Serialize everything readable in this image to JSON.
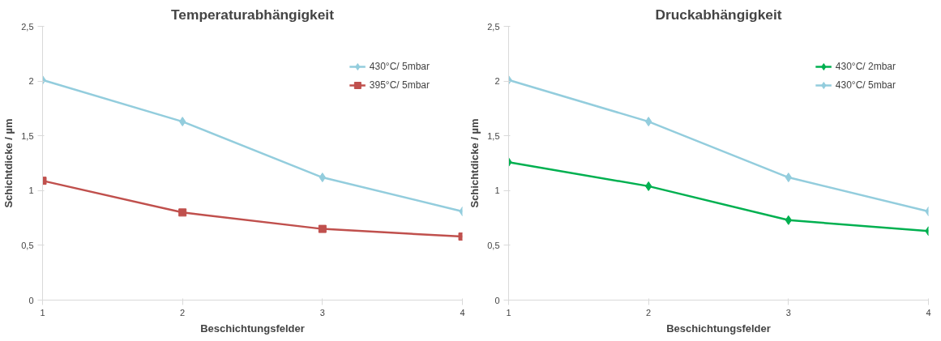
{
  "chart_data": [
    {
      "type": "line",
      "title": "Temperaturabhängigkeit",
      "xlabel": "Beschichtungsfelder",
      "ylabel": "Schichtdicke / µm",
      "x": [
        1,
        2,
        3,
        4
      ],
      "xlim": [
        1,
        4
      ],
      "xticks": [
        1,
        2,
        3,
        4
      ],
      "ylim": [
        0,
        2.5
      ],
      "yticks": [
        0,
        {
          "value": 0.5,
          "label": "0,5"
        },
        1,
        {
          "value": 1.5,
          "label": "1,5"
        },
        2,
        {
          "value": 2.5,
          "label": "2,5"
        }
      ],
      "grid": false,
      "legend": "top right",
      "series": [
        {
          "name": "430°C/ 5mbar",
          "color": "#93cddd",
          "marker": "diamond",
          "values": [
            2.01,
            1.63,
            1.12,
            0.81
          ]
        },
        {
          "name": "395°C/ 5mbar",
          "color": "#c0504d",
          "marker": "square",
          "values": [
            1.09,
            0.8,
            0.65,
            0.58
          ]
        }
      ]
    },
    {
      "type": "line",
      "title": "Druckabhängigkeit",
      "xlabel": "Beschichtungsfelder",
      "ylabel": "Schichtdicke / µm",
      "x": [
        1,
        2,
        3,
        4
      ],
      "xlim": [
        1,
        4
      ],
      "xticks": [
        1,
        2,
        3,
        4
      ],
      "ylim": [
        0,
        2.5
      ],
      "yticks": [
        0,
        {
          "value": 0.5,
          "label": "0,5"
        },
        1,
        {
          "value": 1.5,
          "label": "1,5"
        },
        2,
        {
          "value": 2.5,
          "label": "2,5"
        }
      ],
      "grid": false,
      "legend": "top right",
      "series": [
        {
          "name": "430°C/ 2mbar",
          "color": "#00b050",
          "marker": "diamond",
          "values": [
            1.26,
            1.04,
            0.73,
            0.63
          ]
        },
        {
          "name": "430°C/ 5mbar",
          "color": "#93cddd",
          "marker": "diamond",
          "values": [
            2.01,
            1.63,
            1.12,
            0.81
          ]
        }
      ]
    }
  ]
}
